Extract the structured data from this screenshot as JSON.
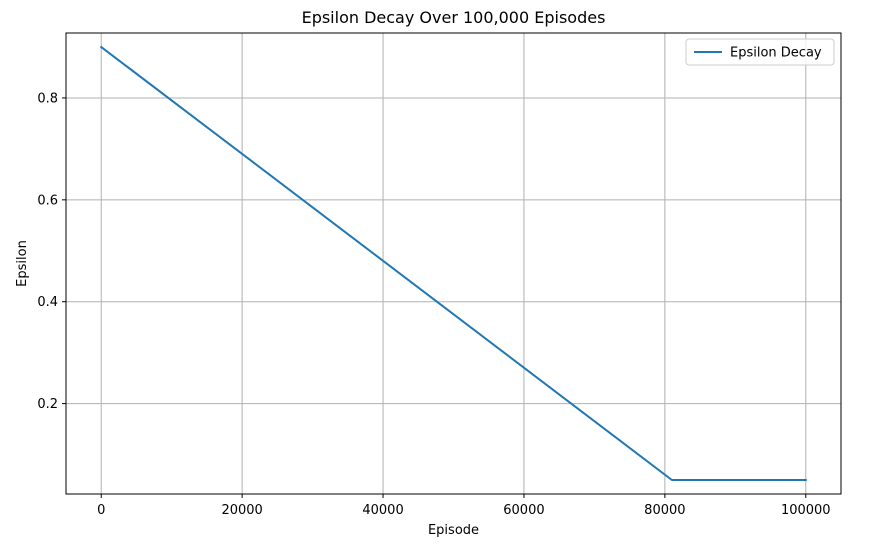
{
  "chart_data": {
    "type": "line",
    "title": "Epsilon Decay Over 100,000 Episodes",
    "xlabel": "Episode",
    "ylabel": "Epsilon",
    "xlim": [
      -5000,
      105000
    ],
    "ylim": [
      0.0225,
      0.9275
    ],
    "xticks": [
      0,
      20000,
      40000,
      60000,
      80000,
      100000
    ],
    "xtick_labels": [
      "0",
      "20000",
      "40000",
      "60000",
      "80000",
      "100000"
    ],
    "yticks": [
      0.2,
      0.4,
      0.6,
      0.8
    ],
    "ytick_labels": [
      "0.2",
      "0.4",
      "0.6",
      "0.8"
    ],
    "grid": true,
    "legend_position": "top-right",
    "series": [
      {
        "name": "Epsilon Decay",
        "color": "#1f77b4",
        "x": [
          0,
          81000,
          100000
        ],
        "y": [
          0.9,
          0.05,
          0.05
        ]
      }
    ]
  }
}
